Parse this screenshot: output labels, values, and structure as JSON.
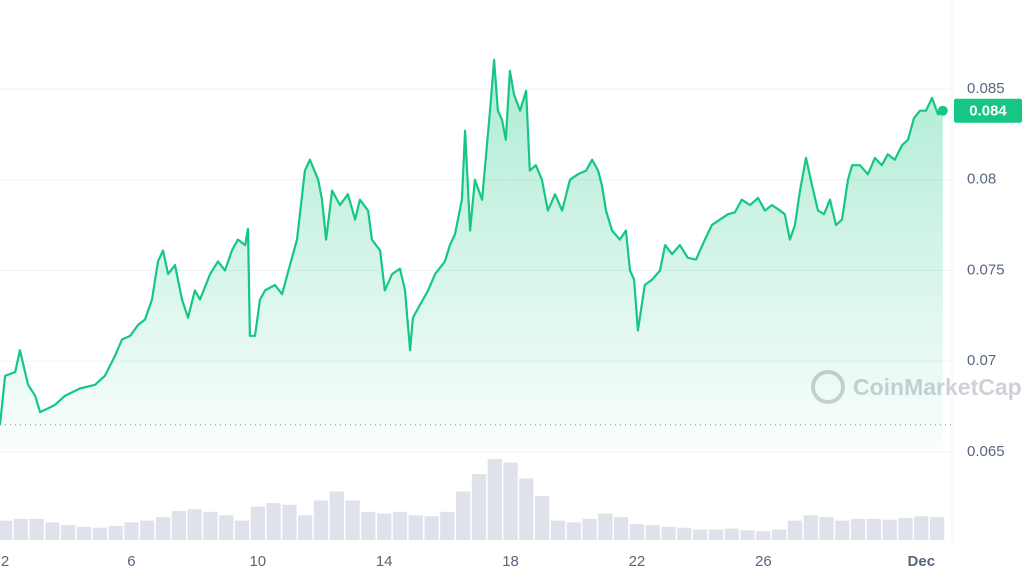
{
  "chart_data": {
    "type": "line",
    "x": [
      1.84,
      2.0,
      2.32,
      2.47,
      2.73,
      2.95,
      3.11,
      3.36,
      3.58,
      3.9,
      4.37,
      4.85,
      5.16,
      5.48,
      5.7,
      5.96,
      6.21,
      6.43,
      6.65,
      6.84,
      7.0,
      7.16,
      7.38,
      7.6,
      7.79,
      8.01,
      8.17,
      8.49,
      8.74,
      8.96,
      9.18,
      9.37,
      9.6,
      9.69,
      9.75,
      9.91,
      10.07,
      10.23,
      10.54,
      10.77,
      11.02,
      11.24,
      11.49,
      11.65,
      11.91,
      12.03,
      12.16,
      12.35,
      12.6,
      12.85,
      13.08,
      13.23,
      13.49,
      13.61,
      13.87,
      14.02,
      14.25,
      14.5,
      14.66,
      14.82,
      14.91,
      15.13,
      15.39,
      15.61,
      15.92,
      16.08,
      16.24,
      16.46,
      16.56,
      16.72,
      16.87,
      17.1,
      17.35,
      17.48,
      17.6,
      17.73,
      17.85,
      17.98,
      18.11,
      18.3,
      18.49,
      18.61,
      18.8,
      18.99,
      19.18,
      19.41,
      19.63,
      19.88,
      20.13,
      20.39,
      20.58,
      20.77,
      20.89,
      21.02,
      21.21,
      21.46,
      21.65,
      21.78,
      21.91,
      22.03,
      22.25,
      22.48,
      22.73,
      22.89,
      23.11,
      23.36,
      23.61,
      23.87,
      24.15,
      24.37,
      24.63,
      24.88,
      25.1,
      25.32,
      25.58,
      25.83,
      26.05,
      26.27,
      26.53,
      26.68,
      26.84,
      27.0,
      27.16,
      27.35,
      27.54,
      27.73,
      27.92,
      28.11,
      28.3,
      28.49,
      28.68,
      28.81,
      29.06,
      29.31,
      29.53,
      29.75,
      29.94,
      30.16,
      30.39,
      30.58,
      30.77,
      30.96,
      31.15,
      31.34,
      31.53,
      31.68
    ],
    "values": [
      0.0665,
      0.0692,
      0.0694,
      0.0706,
      0.0687,
      0.0681,
      0.0672,
      0.0674,
      0.0676,
      0.0681,
      0.0685,
      0.0687,
      0.0692,
      0.0703,
      0.0712,
      0.0714,
      0.072,
      0.0723,
      0.0734,
      0.0755,
      0.0761,
      0.0748,
      0.0753,
      0.0734,
      0.0724,
      0.0739,
      0.0734,
      0.0748,
      0.0755,
      0.075,
      0.0761,
      0.0767,
      0.0764,
      0.0773,
      0.0714,
      0.0714,
      0.0734,
      0.0739,
      0.0742,
      0.0737,
      0.0753,
      0.0767,
      0.0805,
      0.0811,
      0.08,
      0.0789,
      0.0767,
      0.0794,
      0.0786,
      0.0792,
      0.0778,
      0.0789,
      0.0783,
      0.0767,
      0.0761,
      0.0739,
      0.0748,
      0.0751,
      0.0739,
      0.0706,
      0.0724,
      0.0731,
      0.0739,
      0.0748,
      0.0755,
      0.0764,
      0.077,
      0.0789,
      0.0827,
      0.0772,
      0.08,
      0.0789,
      0.0838,
      0.0866,
      0.0838,
      0.0833,
      0.0822,
      0.086,
      0.0847,
      0.0838,
      0.0849,
      0.0805,
      0.0808,
      0.08,
      0.0783,
      0.0792,
      0.0783,
      0.08,
      0.0803,
      0.0805,
      0.0811,
      0.0805,
      0.0797,
      0.0783,
      0.0772,
      0.0767,
      0.0772,
      0.075,
      0.0745,
      0.0717,
      0.0742,
      0.0745,
      0.075,
      0.0764,
      0.0759,
      0.0764,
      0.0757,
      0.0756,
      0.0767,
      0.0775,
      0.0778,
      0.0781,
      0.0782,
      0.0789,
      0.0786,
      0.079,
      0.0783,
      0.0786,
      0.0783,
      0.0781,
      0.0767,
      0.0775,
      0.0794,
      0.0812,
      0.0797,
      0.0783,
      0.0781,
      0.0789,
      0.0775,
      0.0778,
      0.08,
      0.0808,
      0.0808,
      0.0803,
      0.0812,
      0.0808,
      0.0814,
      0.0811,
      0.0819,
      0.0822,
      0.0834,
      0.0838,
      0.0838,
      0.0845,
      0.0836,
      0.0838
    ],
    "color": "#16c784",
    "xlim": [
      1.84,
      31.75
    ],
    "xticks": [
      2,
      6,
      10,
      14,
      18,
      22,
      26,
      {
        "value": 31,
        "label": "Dec"
      }
    ],
    "ylim": [
      0.065,
      0.0899
    ],
    "yticks": [
      0.065,
      0.07,
      0.075,
      0.08,
      0.085
    ],
    "grid": true,
    "price_tag": "0.084",
    "watermark": "CoinMarketCap",
    "volume": {
      "x": [
        2.0,
        2.5,
        3.0,
        3.5,
        4.0,
        4.5,
        5.0,
        5.5,
        6.0,
        6.5,
        7.0,
        7.5,
        8.0,
        8.5,
        9.0,
        9.5,
        10.0,
        10.5,
        11.0,
        11.5,
        12.0,
        12.5,
        13.0,
        13.5,
        14.0,
        14.5,
        15.0,
        15.5,
        16.0,
        16.5,
        17.0,
        17.5,
        18.0,
        18.5,
        19.0,
        19.5,
        20.0,
        20.5,
        21.0,
        21.5,
        22.0,
        22.5,
        23.0,
        23.5,
        24.0,
        24.5,
        25.0,
        25.5,
        26.0,
        26.5,
        27.0,
        27.5,
        28.0,
        28.5,
        29.0,
        29.5,
        30.0,
        30.5,
        31.0,
        31.5
      ],
      "values": [
        22,
        24,
        24,
        20,
        17,
        15,
        14,
        16,
        20,
        22,
        26,
        33,
        35,
        32,
        28,
        22,
        38,
        42,
        40,
        28,
        45,
        55,
        45,
        32,
        30,
        32,
        28,
        27,
        32,
        55,
        75,
        92,
        88,
        70,
        50,
        22,
        20,
        24,
        30,
        26,
        18,
        17,
        15,
        14,
        12,
        12,
        13,
        11,
        10,
        12,
        22,
        28,
        26,
        22,
        24,
        24,
        23,
        25,
        27,
        26
      ],
      "ylim": [
        0,
        100
      ],
      "color": "#dfe2ea"
    }
  }
}
